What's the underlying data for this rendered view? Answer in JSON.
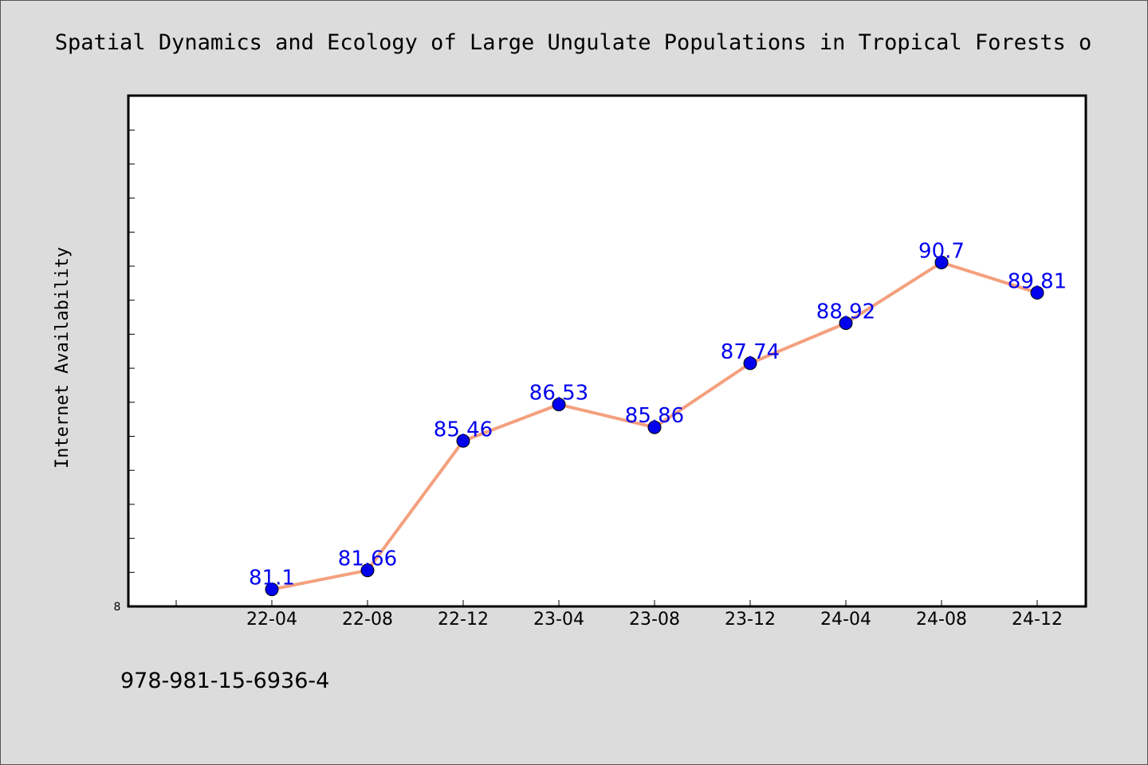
{
  "title": "Spatial Dynamics and Ecology of Large Ungulate Populations in Tropical Forests o",
  "footer": "978-981-15-6936-4",
  "colors": {
    "background": "#dcdcdc",
    "plot_background": "#ffffff",
    "line": "#f4a07e",
    "marker": "#0000ee",
    "data_label": "#0000ee"
  },
  "chart_data": {
    "type": "line",
    "title": "Spatial Dynamics and Ecology of Large Ungulate Populations in Tropical Forests o",
    "xlabel": "",
    "ylabel": "Internet Availability",
    "categories": [
      "22-04",
      "22-08",
      "22-12",
      "23-04",
      "23-08",
      "23-12",
      "24-04",
      "24-08",
      "24-12"
    ],
    "series": [
      {
        "values": [
          81.1,
          81.66,
          85.46,
          86.53,
          85.86,
          87.74,
          88.92,
          90.7,
          89.81
        ],
        "labels": [
          "81.1",
          "81.66",
          "85.46",
          "86.53",
          "85.86",
          "87.74",
          "88.92",
          "90.7",
          "89.81"
        ]
      }
    ],
    "ylim": [
      80.6,
      95.6
    ],
    "y_min_tick_label": "8",
    "grid": false,
    "legend": "none"
  }
}
